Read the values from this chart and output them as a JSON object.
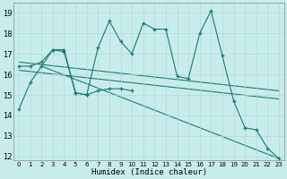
{
  "xlabel": "Humidex (Indice chaleur)",
  "bg_color": "#c8ecec",
  "line_color": "#1a7a6a",
  "grid_color": "#b0d8d8",
  "xlim": [
    -0.5,
    23.5
  ],
  "ylim": [
    11.8,
    19.5
  ],
  "yticks": [
    12,
    13,
    14,
    15,
    16,
    17,
    18,
    19
  ],
  "xticks": [
    0,
    1,
    2,
    3,
    4,
    5,
    6,
    7,
    8,
    9,
    10,
    11,
    12,
    13,
    14,
    15,
    16,
    17,
    18,
    19,
    20,
    21,
    22,
    23
  ],
  "series_volatile_x": [
    0,
    1,
    2,
    3,
    4,
    5,
    6,
    7,
    8,
    9,
    10,
    11,
    12,
    13,
    14,
    15,
    16,
    17,
    18,
    19,
    20,
    21,
    22,
    23
  ],
  "series_volatile_y": [
    14.3,
    15.6,
    16.4,
    17.2,
    17.2,
    15.1,
    15.0,
    17.3,
    18.6,
    17.6,
    17.0,
    18.5,
    18.2,
    18.2,
    15.9,
    15.8,
    18.0,
    19.1,
    16.9,
    14.7,
    13.4,
    13.3,
    12.4,
    11.9
  ],
  "series_short_x": [
    0,
    1,
    2,
    3,
    4,
    5,
    6,
    7,
    8,
    9,
    10
  ],
  "series_short_y": [
    16.4,
    16.4,
    16.6,
    17.2,
    17.1,
    15.1,
    15.0,
    15.2,
    15.3,
    15.3,
    15.2
  ],
  "trend1_x": [
    0,
    23
  ],
  "trend1_y": [
    16.6,
    15.2
  ],
  "trend2_x": [
    0,
    23
  ],
  "trend2_y": [
    16.2,
    14.8
  ],
  "trend3_x": [
    2,
    23
  ],
  "trend3_y": [
    16.4,
    11.9
  ]
}
